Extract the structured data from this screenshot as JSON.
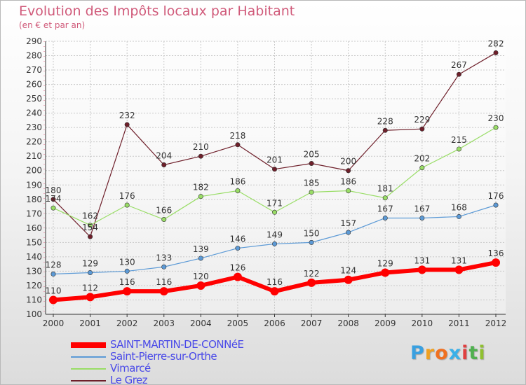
{
  "title": "Evolution des Impôts locaux par Habitant",
  "subtitle": "(en € et par an)",
  "chart_data": {
    "type": "line",
    "x": [
      "2000",
      "2001",
      "2002",
      "2003",
      "2004",
      "2005",
      "2006",
      "2007",
      "2008",
      "2009",
      "2010",
      "2011",
      "2012"
    ],
    "ylim": [
      100,
      290
    ],
    "yticks": [
      "100",
      "110",
      "120",
      "130",
      "140",
      "150",
      "160",
      "170",
      "180",
      "190",
      "200",
      "210",
      "220",
      "230",
      "240",
      "250",
      "260",
      "270",
      "280",
      "290"
    ],
    "grid": true,
    "legend_placement": "bottom-left",
    "series": [
      {
        "name": "Le Grez",
        "color": "#6e1f2a",
        "stroke": 1.2,
        "marker": 3.2,
        "values": [
          180,
          154,
          232,
          204,
          210,
          218,
          201,
          205,
          200,
          228,
          229,
          267,
          282
        ],
        "labels": [
          "180",
          "154",
          "232",
          "204",
          "210",
          "218",
          "201",
          "205",
          "200",
          "228",
          "229",
          "267",
          "282"
        ]
      },
      {
        "name": "Vimarcé",
        "color": "#99dd66",
        "stroke": 1.2,
        "marker": 3.2,
        "values": [
          174,
          162,
          176,
          166,
          182,
          186,
          171,
          185,
          186,
          181,
          202,
          215,
          230
        ],
        "labels": [
          "174",
          "162",
          "176",
          "166",
          "182",
          "186",
          "171",
          "185",
          "186",
          "181",
          "202",
          "215",
          "230"
        ]
      },
      {
        "name": "Saint-Pierre-sur-Orthe",
        "color": "#5c9ad6",
        "stroke": 1.2,
        "marker": 3.2,
        "values": [
          128,
          129,
          130,
          133,
          139,
          146,
          149,
          150,
          157,
          167,
          167,
          168,
          176
        ],
        "labels": [
          "128",
          "129",
          "130",
          "133",
          "139",
          "146",
          "149",
          "150",
          "157",
          "167",
          "167",
          "168",
          "176"
        ]
      },
      {
        "name": "SAINT-MARTIN-DE-CONNéE",
        "color": "#ff0000",
        "stroke": 6,
        "marker": 6,
        "values": [
          110,
          112,
          116,
          116,
          120,
          126,
          116,
          122,
          124,
          129,
          131,
          131,
          136
        ],
        "labels": [
          "110",
          "112",
          "116",
          "116",
          "120",
          "126",
          "116",
          "122",
          "124",
          "129",
          "131",
          "131",
          "136"
        ]
      }
    ]
  },
  "legend": [
    {
      "label": "SAINT-MARTIN-DE-CONNéE",
      "color": "#ff0000",
      "thickness": 8
    },
    {
      "label": "Saint-Pierre-sur-Orthe",
      "color": "#5c9ad6",
      "thickness": 2
    },
    {
      "label": "Vimarcé",
      "color": "#99dd66",
      "thickness": 2
    },
    {
      "label": "Le Grez",
      "color": "#6e1f2a",
      "thickness": 2
    }
  ],
  "logo": {
    "letters": [
      "P",
      "r",
      "o",
      "x",
      "i",
      "t",
      "i"
    ],
    "colors": [
      "#3aa0e0",
      "#f0a020",
      "#f07020",
      "#3ab0e8",
      "#e04040",
      "#50b050",
      "#90c030"
    ]
  }
}
